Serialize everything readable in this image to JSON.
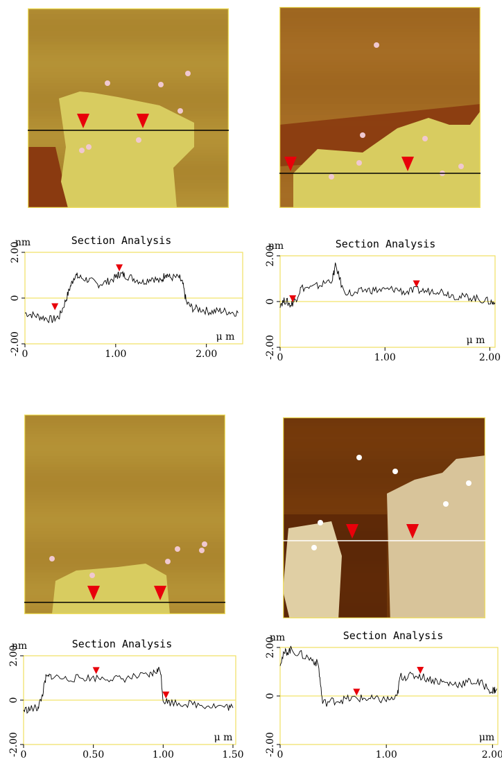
{
  "figure": {
    "colors": {
      "afm_light_terrace": "#c9b24a",
      "afm_dark_terrace": "#8a4d10",
      "afm_grey_top": "#e2d4b2",
      "afm_grey_bottom": "#5a2508",
      "frame": "#f0e060",
      "profile": "#000000",
      "baseline": "#f2e36a",
      "marker": "#e8000a"
    },
    "images": [
      {
        "label": "afm-image-a",
        "palette": "gold",
        "scan_line": "black"
      },
      {
        "label": "afm-image-b",
        "palette": "gold",
        "scan_line": "black"
      },
      {
        "label": "afm-image-c",
        "palette": "gold",
        "scan_line": "black"
      },
      {
        "label": "afm-image-d",
        "palette": "brown",
        "scan_line": "white"
      }
    ]
  },
  "chart_data": [
    {
      "type": "line",
      "title": "Section Analysis",
      "ylabel": "nm",
      "xlabel": "μ m",
      "xlim": [
        0,
        2.4
      ],
      "ylim": [
        -2.0,
        2.0
      ],
      "xticks": [
        0,
        1.0,
        2.0
      ],
      "xtick_labels": [
        "0",
        "1.00",
        "2.00"
      ],
      "yticks": [
        2.0,
        0,
        -2.0
      ],
      "ytick_labels": [
        "2.00",
        "0",
        "-2.00"
      ],
      "markers": [
        {
          "x": 0.33,
          "y": -0.65
        },
        {
          "x": 1.04,
          "y": 1.05
        }
      ],
      "series": [
        {
          "x": [
            0,
            0.1,
            0.2,
            0.3,
            0.38,
            0.45,
            0.5,
            0.55,
            0.6,
            0.7,
            0.8,
            0.9,
            1.0,
            1.04,
            1.1,
            1.2,
            1.3,
            1.4,
            1.5,
            1.55,
            1.6,
            1.7,
            1.74,
            1.78,
            1.85,
            1.95,
            2.05,
            2.15,
            2.25,
            2.35
          ],
          "values": [
            -0.65,
            -0.75,
            -0.85,
            -0.95,
            -0.8,
            -0.1,
            0.5,
            1.0,
            0.9,
            0.8,
            0.6,
            0.7,
            0.9,
            1.05,
            1.0,
            0.85,
            0.7,
            0.9,
            0.7,
            1.1,
            0.9,
            0.9,
            0.6,
            -0.2,
            -0.45,
            -0.5,
            -0.6,
            -0.55,
            -0.6,
            -0.65
          ]
        }
      ]
    },
    {
      "type": "line",
      "title": "Section Analysis",
      "ylabel": "nm",
      "xlabel": "μ m",
      "xlim": [
        0,
        2.05
      ],
      "ylim": [
        -2.0,
        2.0
      ],
      "xticks": [
        0,
        1.0,
        2.0
      ],
      "xtick_labels": [
        "0",
        "1.00",
        "2.00"
      ],
      "yticks": [
        2.0,
        0,
        -2.0
      ],
      "ytick_labels": [
        "2.00",
        "0",
        "-2.00"
      ],
      "markers": [
        {
          "x": 0.12,
          "y": -0.15
        },
        {
          "x": 1.3,
          "y": 0.5
        }
      ],
      "series": [
        {
          "x": [
            0,
            0.05,
            0.1,
            0.15,
            0.2,
            0.3,
            0.4,
            0.5,
            0.53,
            0.6,
            0.7,
            0.8,
            0.9,
            1.0,
            1.1,
            1.2,
            1.3,
            1.4,
            1.5,
            1.6,
            1.7,
            1.8,
            1.9,
            2.0,
            2.05
          ],
          "values": [
            -0.1,
            0.05,
            -0.15,
            0.1,
            0.6,
            0.6,
            0.75,
            1.0,
            1.6,
            0.5,
            0.3,
            0.5,
            0.5,
            0.5,
            0.55,
            0.4,
            0.5,
            0.45,
            0.5,
            0.35,
            0.2,
            0.2,
            0.1,
            0.0,
            -0.1
          ]
        }
      ]
    },
    {
      "type": "line",
      "title": "Section Analysis",
      "ylabel": "nm",
      "xlabel": "μ m",
      "xlim": [
        0,
        1.52
      ],
      "ylim": [
        -2.0,
        2.0
      ],
      "xticks": [
        0,
        0.5,
        1.0,
        1.5
      ],
      "xtick_labels": [
        "0",
        "0.50",
        "1.00",
        "1.50"
      ],
      "yticks": [
        2.0,
        0,
        -2.0
      ],
      "ytick_labels": [
        "2.00",
        "0",
        "-2.00"
      ],
      "markers": [
        {
          "x": 0.52,
          "y": 1.05
        },
        {
          "x": 1.02,
          "y": -0.05
        }
      ],
      "series": [
        {
          "x": [
            0,
            0.05,
            0.1,
            0.13,
            0.16,
            0.2,
            0.3,
            0.4,
            0.5,
            0.6,
            0.7,
            0.8,
            0.9,
            0.95,
            0.98,
            1.0,
            1.05,
            1.15,
            1.25,
            1.35,
            1.45,
            1.5
          ],
          "values": [
            -0.45,
            -0.4,
            -0.35,
            0.1,
            1.0,
            1.1,
            0.95,
            1.0,
            1.0,
            1.0,
            0.95,
            1.05,
            1.1,
            1.3,
            1.4,
            0.0,
            -0.1,
            -0.15,
            -0.2,
            -0.25,
            -0.3,
            -0.35
          ]
        }
      ]
    },
    {
      "type": "line",
      "title": "Section Analysis",
      "ylabel": "nm",
      "xlabel": "μm",
      "xlim": [
        0,
        2.05
      ],
      "ylim": [
        -2.0,
        2.0
      ],
      "xticks": [
        0,
        1.0,
        2.0
      ],
      "xtick_labels": [
        "0",
        "1.00",
        "2.00"
      ],
      "yticks": [
        2.0,
        0,
        -2.0
      ],
      "ytick_labels": [
        "2.00",
        "0",
        "-2.00"
      ],
      "markers": [
        {
          "x": 0.72,
          "y": -0.1
        },
        {
          "x": 1.32,
          "y": 0.8
        }
      ],
      "series": [
        {
          "x": [
            0,
            0.05,
            0.1,
            0.2,
            0.3,
            0.36,
            0.4,
            0.5,
            0.6,
            0.7,
            0.8,
            0.9,
            1.0,
            1.1,
            1.13,
            1.2,
            1.3,
            1.4,
            1.5,
            1.6,
            1.7,
            1.8,
            1.9,
            2.0,
            2.04
          ],
          "values": [
            1.4,
            1.8,
            1.9,
            1.7,
            1.5,
            1.3,
            -0.3,
            -0.2,
            -0.15,
            -0.1,
            -0.1,
            -0.15,
            -0.15,
            -0.1,
            0.8,
            0.8,
            0.85,
            0.7,
            0.6,
            0.5,
            0.5,
            0.6,
            0.5,
            0.2,
            0.3
          ]
        }
      ]
    }
  ]
}
